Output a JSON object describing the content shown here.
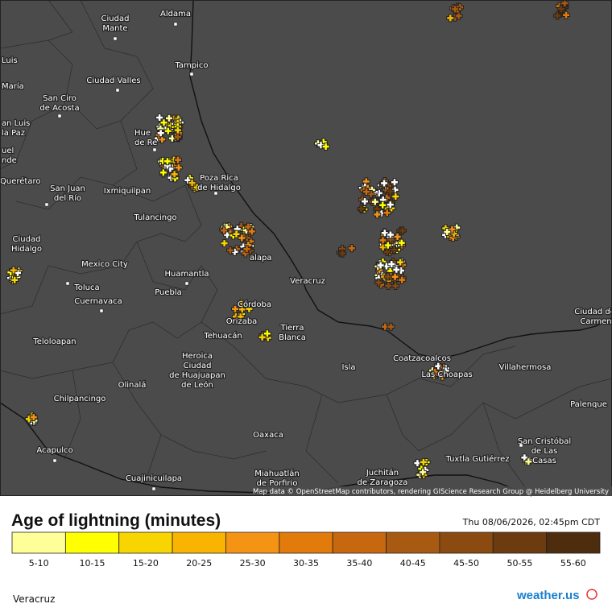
{
  "map": {
    "cities": [
      {
        "lines": [
          "Aldama"
        ]
      },
      {
        "lines": [
          "Ciudad",
          "Mante"
        ]
      },
      {
        "lines": [
          "Tampico"
        ]
      },
      {
        "lines": [
          "Ciudad Valles"
        ]
      },
      {
        "lines": [
          "San Ciro",
          "de Acosta"
        ]
      },
      {
        "lines": [
          "Luis"
        ]
      },
      {
        "lines": [
          "María"
        ]
      },
      {
        "lines": [
          "an Luis",
          "la Paz"
        ]
      },
      {
        "lines": [
          "uel",
          "nde"
        ]
      },
      {
        "lines": [
          "Querétaro"
        ]
      },
      {
        "lines": [
          "San Juan",
          "del Río"
        ]
      },
      {
        "lines": [
          "Ixmiquilpan"
        ]
      },
      {
        "lines": [
          "Hue",
          "de Re"
        ]
      },
      {
        "lines": [
          "Poza Rica",
          "de Hidalgo"
        ]
      },
      {
        "lines": [
          "Tulancingo"
        ]
      },
      {
        "lines": [
          "Ciudad",
          "Hidalgo"
        ]
      },
      {
        "lines": [
          "Mexico City"
        ]
      },
      {
        "lines": [
          "Huamantla"
        ]
      },
      {
        "lines": [
          "Toluca"
        ]
      },
      {
        "lines": [
          "Puebla"
        ]
      },
      {
        "lines": [
          "Cuernavaca"
        ]
      },
      {
        "lines": [
          "alapa"
        ]
      },
      {
        "lines": [
          "Veracruz"
        ]
      },
      {
        "lines": [
          "Córdoba"
        ]
      },
      {
        "lines": [
          "Orizaba"
        ]
      },
      {
        "lines": [
          "Tierra",
          "Blanca"
        ]
      },
      {
        "lines": [
          "Tehuacán"
        ]
      },
      {
        "lines": [
          "Heroica",
          "Ciudad",
          "de Huajuapan",
          "de León"
        ]
      },
      {
        "lines": [
          "Teloloapan"
        ]
      },
      {
        "lines": [
          "Olinalá"
        ]
      },
      {
        "lines": [
          "Chilpancingo"
        ]
      },
      {
        "lines": [
          "Acapulco"
        ]
      },
      {
        "lines": [
          "Oaxaca"
        ]
      },
      {
        "lines": [
          "Cuajinicuilapa"
        ]
      },
      {
        "lines": [
          "Miahuatlán",
          "de Porfirio"
        ]
      },
      {
        "lines": [
          "Juchitán",
          "de Zaragoza"
        ]
      },
      {
        "lines": [
          "Tuxtla Gutiérrez"
        ]
      },
      {
        "lines": [
          "San Cristóbal",
          "de Las",
          "Casas"
        ]
      },
      {
        "lines": [
          "Coatzacoalcos"
        ]
      },
      {
        "lines": [
          "Las Choapas"
        ]
      },
      {
        "lines": [
          "Isla"
        ]
      },
      {
        "lines": [
          "Villahermosa"
        ]
      },
      {
        "lines": [
          "Palenque"
        ]
      },
      {
        "lines": [
          "Ciudad del",
          "Carmen"
        ]
      }
    ],
    "attribution": "Map data © OpenStreetMap contributors, rendering GIScience Research Group @ Heidelberg University"
  },
  "legend": {
    "title": "Age of lightning (minutes)",
    "timestamp": "Thu 08/06/2026, 02:45pm CDT",
    "bins": [
      {
        "label": "5-10",
        "color": "#ffff99"
      },
      {
        "label": "10-15",
        "color": "#ffff00"
      },
      {
        "label": "15-20",
        "color": "#f8d400"
      },
      {
        "label": "20-25",
        "color": "#f8b400"
      },
      {
        "label": "25-30",
        "color": "#f59414"
      },
      {
        "label": "30-35",
        "color": "#e27a0c"
      },
      {
        "label": "35-40",
        "color": "#c8680e"
      },
      {
        "label": "40-45",
        "color": "#a85a12"
      },
      {
        "label": "45-50",
        "color": "#8a4a10"
      },
      {
        "label": "50-55",
        "color": "#6c3c10"
      },
      {
        "label": "55-60",
        "color": "#4e2c0e"
      }
    ]
  },
  "footer": {
    "region": "Veracruz",
    "logo": "weather.us"
  }
}
